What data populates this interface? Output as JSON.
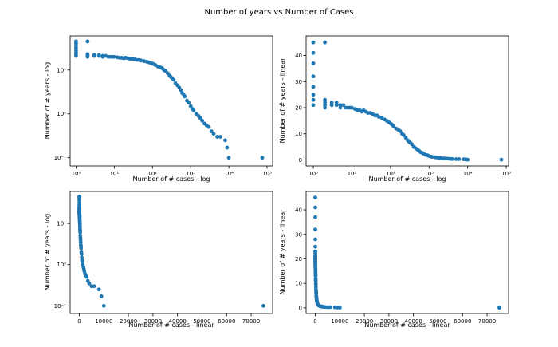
{
  "figure": {
    "suptitle": "Number of years  vs Number of Cases"
  },
  "chart_data": [
    {
      "type": "scatter",
      "panel": "top-left",
      "xlabel": "Number of # cases - log",
      "ylabel": "Number of # years - log",
      "xscale": "log",
      "yscale": "log",
      "xlim": [
        0.7,
        140000
      ],
      "ylim": [
        0.065,
        60
      ],
      "xticks": [
        1,
        10,
        100,
        1000,
        10000,
        100000
      ],
      "xtick_labels": [
        "10⁰",
        "10¹",
        "10²",
        "10³",
        "10⁴",
        "10⁵"
      ],
      "yticks": [
        0.1,
        1,
        10
      ],
      "ytick_labels": [
        "10⁻¹",
        "10⁰",
        "10¹"
      ],
      "color": "#1f77b4",
      "x": [],
      "y": []
    },
    {
      "type": "scatter",
      "panel": "top-right",
      "xlabel": "Number of # cases - log",
      "ylabel": "Number of # years - linear",
      "xscale": "log",
      "yscale": "linear",
      "xlim": [
        0.65,
        115000
      ],
      "ylim": [
        -2.3,
        47.5
      ],
      "xticks": [
        1,
        10,
        100,
        1000,
        10000,
        100000
      ],
      "xtick_labels": [
        "10⁰",
        "10¹",
        "10²",
        "10³",
        "10⁴",
        "10⁵"
      ],
      "yticks": [
        0,
        10,
        20,
        30,
        40
      ],
      "ytick_labels": [
        "0",
        "10",
        "20",
        "30",
        "40"
      ],
      "color": "#1f77b4",
      "x": [],
      "y": []
    },
    {
      "type": "scatter",
      "panel": "bottom-left",
      "xlabel": "Number of # cases - linear",
      "ylabel": "Number of # years - log",
      "xscale": "linear",
      "yscale": "log",
      "xlim": [
        -3750,
        78750
      ],
      "ylim": [
        0.065,
        60
      ],
      "xticks": [
        0,
        10000,
        20000,
        30000,
        40000,
        50000,
        60000,
        70000
      ],
      "xtick_labels": [
        "0",
        "10000",
        "20000",
        "30000",
        "40000",
        "50000",
        "60000",
        "70000"
      ],
      "yticks": [
        0.1,
        1,
        10
      ],
      "ytick_labels": [
        "10⁻¹",
        "10⁰",
        "10¹"
      ],
      "color": "#1f77b4",
      "x": [],
      "y": []
    },
    {
      "type": "scatter",
      "panel": "bottom-right",
      "xlabel": "Number of # cases - linear",
      "ylabel": "Number of # years - linear",
      "xscale": "linear",
      "yscale": "linear",
      "xlim": [
        -3750,
        78750
      ],
      "ylim": [
        -2.3,
        47.5
      ],
      "xticks": [
        0,
        10000,
        20000,
        30000,
        40000,
        50000,
        60000,
        70000
      ],
      "xtick_labels": [
        "0",
        "10000",
        "20000",
        "30000",
        "40000",
        "50000",
        "60000",
        "70000"
      ],
      "yticks": [
        0,
        10,
        20,
        30,
        40
      ],
      "ytick_labels": [
        "0",
        "10",
        "20",
        "30",
        "40"
      ],
      "color": "#1f77b4",
      "x": [],
      "y": []
    }
  ],
  "points": {
    "x": [
      1,
      1,
      1,
      1,
      1,
      1,
      1,
      1,
      2,
      2,
      2,
      2,
      2,
      3,
      3,
      3,
      4,
      4,
      5,
      5,
      6,
      7,
      8,
      9,
      10,
      12,
      14,
      16,
      18,
      20,
      23,
      26,
      30,
      35,
      40,
      45,
      50,
      60,
      70,
      80,
      90,
      100,
      110,
      120,
      140,
      160,
      180,
      200,
      220,
      250,
      280,
      300,
      330,
      360,
      400,
      450,
      500,
      550,
      600,
      650,
      700,
      800,
      900,
      1000,
      1100,
      1200,
      1400,
      1600,
      1800,
      2000,
      2300,
      2600,
      3000,
      3500,
      4000,
      5000,
      6000,
      8000,
      9000,
      10000,
      75000
    ],
    "y": [
      45,
      41,
      37,
      32,
      28,
      25,
      23,
      21,
      45,
      23,
      22,
      21,
      20,
      22,
      21,
      21,
      21,
      22,
      21,
      20,
      21,
      20,
      20,
      20,
      20,
      19.5,
      19,
      19,
      18.5,
      19,
      18.5,
      18,
      18,
      17.5,
      17,
      17,
      16.5,
      16,
      15.5,
      15,
      14.5,
      14,
      13.5,
      13,
      12,
      11.5,
      11,
      10,
      9.5,
      8.5,
      7.5,
      7,
      6.5,
      6,
      5,
      4.5,
      4,
      3.5,
      3,
      2.8,
      2.5,
      2,
      1.8,
      1.5,
      1.3,
      1.2,
      1,
      0.9,
      0.8,
      0.7,
      0.6,
      0.55,
      0.5,
      0.4,
      0.35,
      0.3,
      0.3,
      0.25,
      0.17,
      0.1,
      0.1
    ]
  }
}
